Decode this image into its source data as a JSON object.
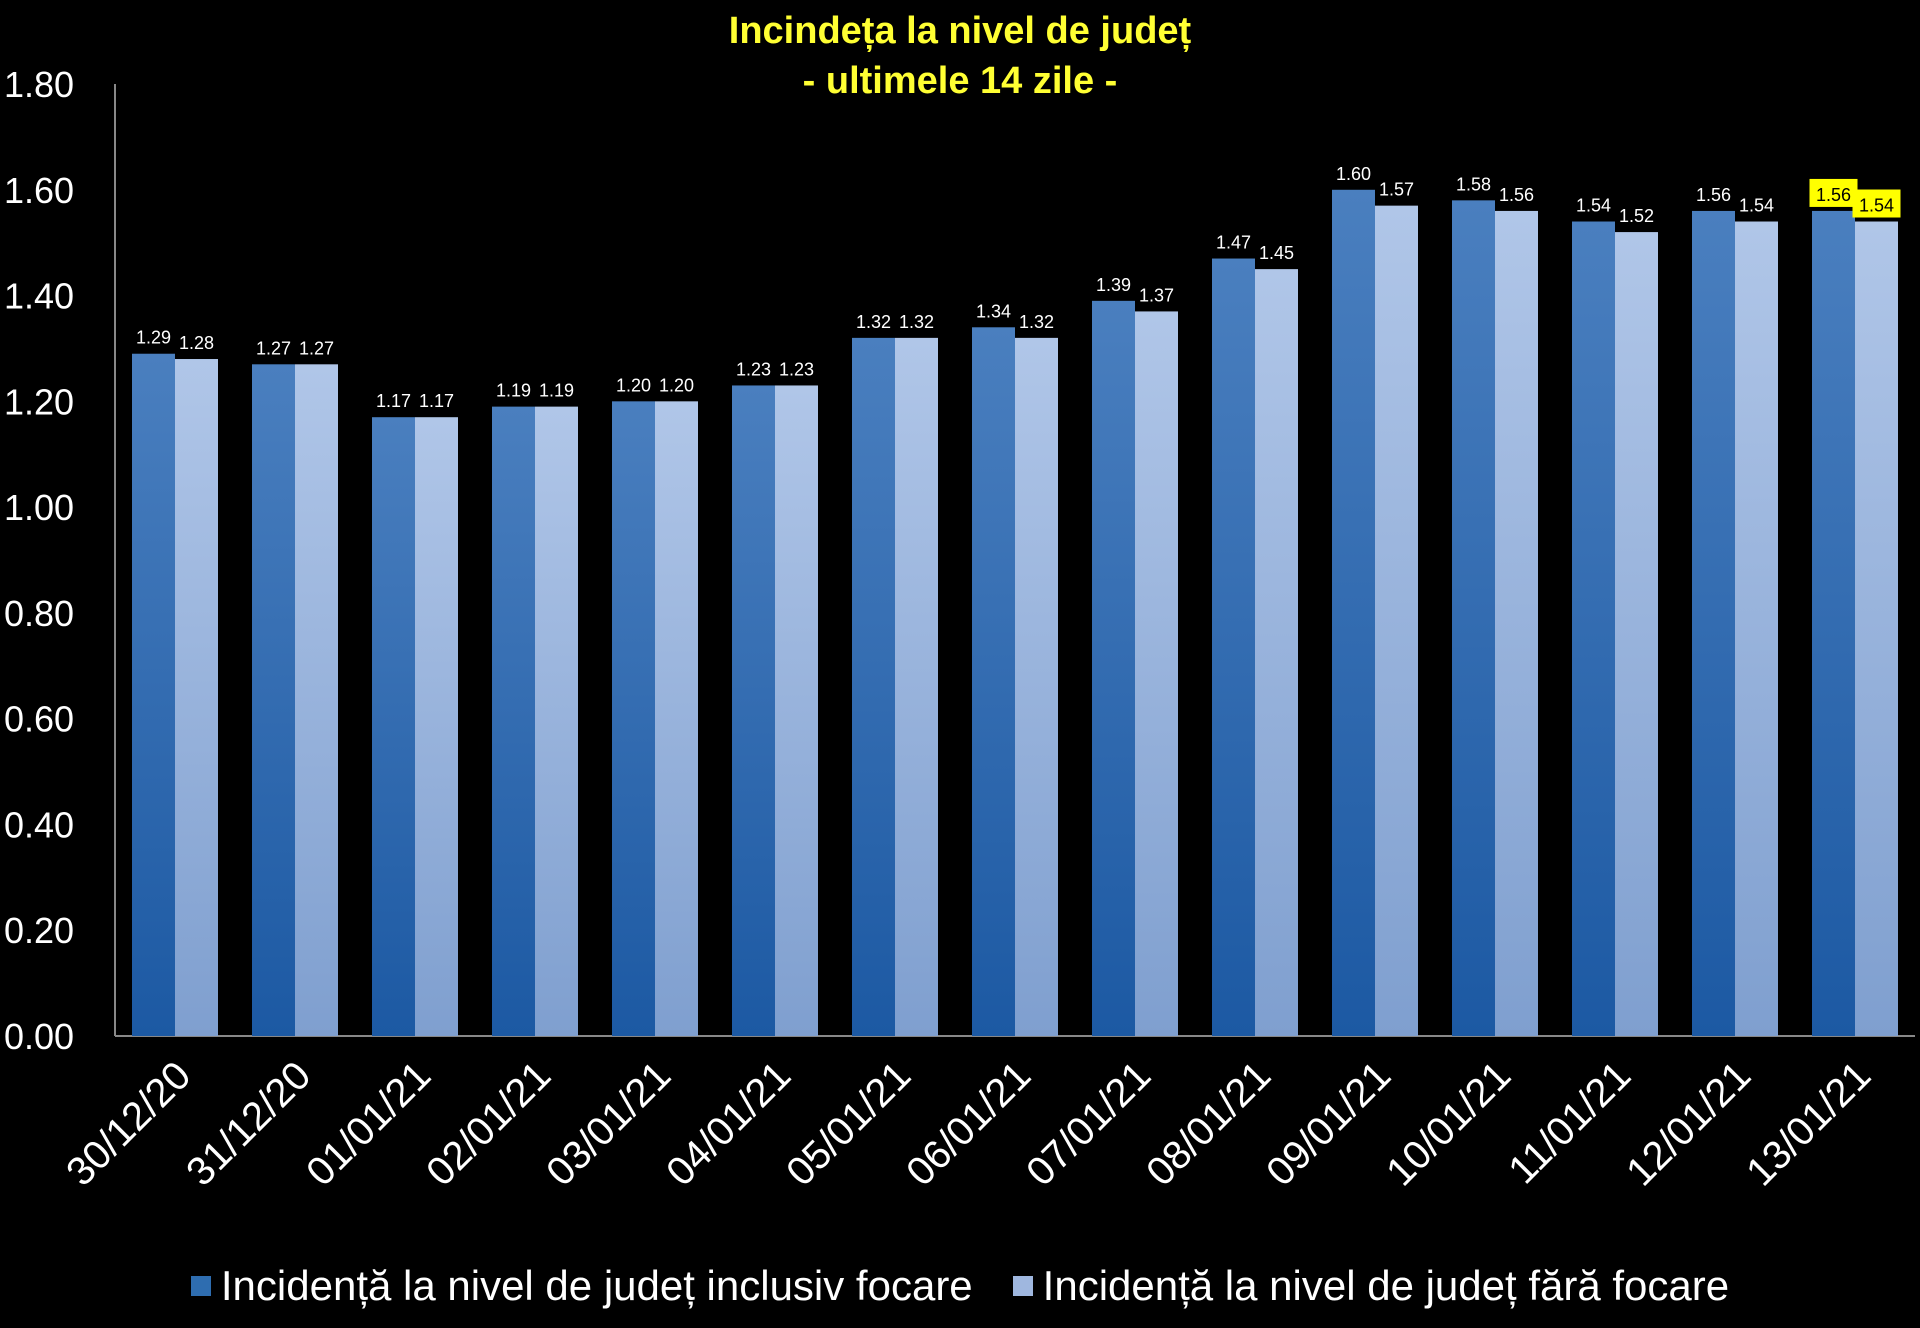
{
  "chart_data": {
    "type": "bar",
    "title": "Incindeța la nivel de județ",
    "subtitle": "- ultimele 14 zile -",
    "categories": [
      "30/12/20",
      "31/12/20",
      "01/01/21",
      "02/01/21",
      "03/01/21",
      "04/01/21",
      "05/01/21",
      "06/01/21",
      "07/01/21",
      "08/01/21",
      "09/01/21",
      "10/01/21",
      "11/01/21",
      "12/01/21",
      "13/01/21"
    ],
    "series": [
      {
        "name": "Incidență la nivel de județ inclusiv focare",
        "color": "#2e6db0",
        "values": [
          1.29,
          1.27,
          1.17,
          1.19,
          1.2,
          1.23,
          1.32,
          1.34,
          1.39,
          1.47,
          1.6,
          1.58,
          1.54,
          1.56,
          1.56
        ],
        "labels": [
          "1.29",
          "1.27",
          "1.17",
          "1.19",
          "1.20",
          "1.23",
          "1.32",
          "1.34",
          "1.39",
          "1.47",
          "1.60",
          "1.58",
          "1.54",
          "1.56",
          "1.56"
        ]
      },
      {
        "name": "Incidență la nivel de județ fără focare",
        "color": "#9fb7df",
        "values": [
          1.28,
          1.27,
          1.17,
          1.19,
          1.2,
          1.23,
          1.32,
          1.32,
          1.37,
          1.45,
          1.57,
          1.56,
          1.52,
          1.54,
          1.54
        ],
        "labels": [
          "1.28",
          "1.27",
          "1.17",
          "1.19",
          "1.20",
          "1.23",
          "1.32",
          "1.32",
          "1.37",
          "1.45",
          "1.57",
          "1.56",
          "1.52",
          "1.54",
          "1.54"
        ]
      }
    ],
    "y_ticks": [
      "0.00",
      "0.20",
      "0.40",
      "0.60",
      "0.80",
      "1.00",
      "1.20",
      "1.40",
      "1.60",
      "1.80"
    ],
    "ylim": [
      0,
      1.8
    ],
    "grid": false,
    "legend_position": "bottom",
    "highlight_color": "#ffff00",
    "highlighted_category": "13/01/21"
  }
}
